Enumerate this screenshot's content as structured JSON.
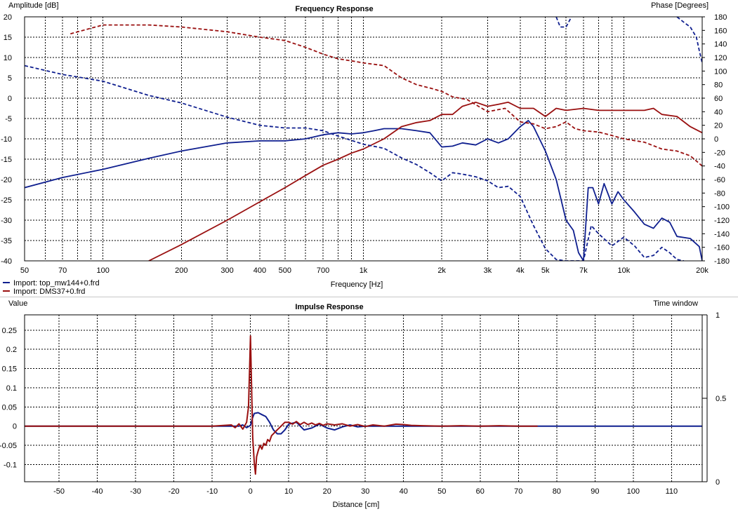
{
  "colors": {
    "blue": "#0f1f8f",
    "red": "#9a1010",
    "grid": "#000000",
    "background": "#ffffff"
  },
  "chart_data": [
    {
      "type": "line",
      "title": "Frequency Response",
      "ylabel": "Amplitude [dB]",
      "y2label": "Phase [Degrees]",
      "xlabel": "Frequency [Hz]",
      "xscale": "log",
      "xlim": [
        50,
        20000
      ],
      "ylim": [
        -40,
        20
      ],
      "y2lim": [
        -180,
        180
      ],
      "x_ticks": [
        50,
        70,
        100,
        200,
        300,
        400,
        500,
        700,
        1000,
        2000,
        3000,
        4000,
        5000,
        7000,
        10000,
        20000
      ],
      "x_tick_labels": [
        "50",
        "70",
        "100",
        "200",
        "300",
        "400",
        "500",
        "700",
        "1k",
        "2k",
        "3k",
        "4k",
        "5k",
        "7k",
        "10k",
        "20k"
      ],
      "y_ticks": [
        20,
        15,
        10,
        5,
        0,
        -5,
        -10,
        -15,
        -20,
        -25,
        -30,
        -35,
        -40
      ],
      "y2_ticks": [
        180,
        160,
        140,
        120,
        100,
        80,
        60,
        40,
        20,
        0,
        -20,
        -40,
        -60,
        -80,
        -100,
        -120,
        -140,
        -160,
        -180
      ],
      "grid": true,
      "legend_position": "bottom-left",
      "legend": [
        "Import: top_mw144+0.frd",
        "Import: DMS37+0.frd"
      ],
      "series": [
        {
          "name": "Import: top_mw144+0.frd",
          "quantity": "amplitude",
          "color": "#0f1f8f",
          "dash": false,
          "x": [
            50,
            70,
            100,
            150,
            200,
            300,
            400,
            500,
            600,
            700,
            800,
            900,
            1000,
            1100,
            1200,
            1400,
            1600,
            1800,
            2000,
            2200,
            2400,
            2700,
            3000,
            3300,
            3600,
            4000,
            4300,
            4500,
            5000,
            5500,
            6000,
            6400,
            6700,
            7000,
            7300,
            7600,
            8000,
            8400,
            9000,
            9500,
            10000,
            11000,
            12000,
            13000,
            14000,
            15000,
            16000,
            18000,
            19500,
            20000
          ],
          "y": [
            -22,
            -19.5,
            -17.5,
            -14.8,
            -13,
            -11,
            -10.5,
            -10.5,
            -10,
            -9,
            -8.5,
            -8.8,
            -8.5,
            -8,
            -7.5,
            -7.5,
            -8,
            -8.5,
            -12,
            -11.8,
            -11,
            -11.5,
            -10,
            -11,
            -10,
            -7,
            -5.5,
            -7,
            -13,
            -20,
            -30,
            -32.5,
            -38,
            -40,
            -22,
            -22,
            -26,
            -21,
            -26,
            -23,
            -25,
            -28,
            -31,
            -32,
            -29.5,
            -30.5,
            -34,
            -34.5,
            -36.5,
            -40
          ]
        },
        {
          "name": "Import: DMS37+0.frd",
          "quantity": "amplitude",
          "color": "#9a1010",
          "dash": false,
          "x": [
            150,
            200,
            300,
            400,
            500,
            600,
            700,
            800,
            900,
            1000,
            1200,
            1400,
            1600,
            1800,
            2000,
            2200,
            2400,
            2700,
            3000,
            3300,
            3600,
            4000,
            4500,
            5000,
            5500,
            6000,
            7000,
            8000,
            9000,
            10000,
            12000,
            13000,
            14000,
            16000,
            18000,
            20000
          ],
          "y": [
            -40,
            -36,
            -30,
            -25.5,
            -22,
            -19,
            -16.5,
            -15,
            -13.5,
            -12.5,
            -10,
            -7,
            -6,
            -5.5,
            -4,
            -4,
            -2,
            -1,
            -2,
            -1.5,
            -1,
            -2.5,
            -2.5,
            -4.5,
            -2.5,
            -3,
            -2.5,
            -3,
            -3,
            -3,
            -3,
            -2.5,
            -4,
            -4.5,
            -7,
            -8.5
          ]
        },
        {
          "name": "Import: top_mw144+0.frd",
          "quantity": "phase",
          "axis": "right",
          "color": "#0f1f8f",
          "dash": true,
          "x": [
            50,
            70,
            100,
            150,
            200,
            300,
            400,
            500,
            600,
            700,
            800,
            1000,
            1200,
            1400,
            1600,
            1800,
            2000,
            2200,
            2400,
            2700,
            3000,
            3300,
            3600,
            4000,
            4500,
            5000,
            5500,
            6000,
            6500,
            7000,
            7500,
            8000,
            9000,
            10000,
            11000,
            12000,
            13000,
            14000,
            15000,
            16000,
            17000
          ],
          "y": [
            108,
            95,
            85,
            64,
            53,
            32,
            20,
            16,
            16,
            12,
            4,
            -8,
            -14,
            -28,
            -38,
            -50,
            -62,
            -50,
            -52,
            -56,
            -62,
            -72,
            -70,
            -85,
            -128,
            -162,
            -178,
            -180,
            -180,
            -180,
            -128,
            -140,
            -158,
            -145,
            -158,
            -175,
            -172,
            -160,
            -168,
            -178,
            -180
          ]
        },
        {
          "name": "Import: top_mw144+0.frd",
          "quantity": "phase",
          "axis": "right",
          "color": "#0f1f8f",
          "dash": true,
          "x": [
            5500,
            5700,
            6000,
            6300
          ],
          "y": [
            180,
            165,
            165,
            180
          ]
        },
        {
          "name": "Import: top_mw144+0.frd",
          "quantity": "phase",
          "axis": "right",
          "color": "#0f1f8f",
          "dash": true,
          "x": [
            16000,
            17000,
            18000,
            19000,
            19500,
            20000
          ],
          "y": [
            180,
            172,
            165,
            150,
            130,
            112
          ]
        },
        {
          "name": "Import: DMS37+0.frd",
          "quantity": "phase",
          "axis": "right",
          "color": "#9a1010",
          "dash": true,
          "x": [
            75,
            100,
            150,
            200,
            300,
            400,
            500,
            600,
            700,
            800,
            900,
            1000,
            1200,
            1400,
            1600,
            1800,
            2000,
            2200,
            2500,
            3000,
            3500,
            4000,
            4500,
            5000,
            5500,
            6000,
            6500,
            7000,
            8000,
            9000,
            10000,
            12000,
            14000,
            16000,
            18000,
            20000
          ],
          "y": [
            155,
            168,
            168,
            165,
            158,
            150,
            145,
            135,
            125,
            118,
            115,
            112,
            108,
            90,
            80,
            75,
            70,
            62,
            58,
            40,
            45,
            25,
            22,
            15,
            18,
            25,
            15,
            12,
            10,
            5,
            0,
            -5,
            -15,
            -18,
            -25,
            -40
          ]
        }
      ]
    },
    {
      "type": "line",
      "title": "Impulse Response",
      "ylabel": "Value",
      "y2label": "Time window",
      "xlabel": "Distance [cm]",
      "xlim": [
        -59,
        118
      ],
      "ylim": [
        -0.145,
        0.29
      ],
      "y2lim": [
        0,
        1
      ],
      "x_ticks": [
        -50,
        -40,
        -30,
        -20,
        -10,
        0,
        10,
        20,
        30,
        40,
        50,
        60,
        70,
        80,
        90,
        100,
        110
      ],
      "y_ticks": [
        0.25,
        0.2,
        0.15,
        0.1,
        0.05,
        0,
        -0.05,
        -0.1
      ],
      "y2_ticks": [
        1,
        0.5,
        0
      ],
      "grid": true,
      "series": [
        {
          "name": "Import: top_mw144+0.frd",
          "color": "#0f1f8f",
          "x": [
            -59,
            -3,
            -2,
            -1,
            0,
            0.5,
            1,
            2,
            3,
            4,
            5,
            6,
            7,
            8,
            9,
            10,
            12,
            14,
            16,
            18,
            20,
            22,
            24,
            26,
            28,
            30,
            35,
            40,
            50,
            60,
            70,
            80,
            118
          ],
          "y": [
            0,
            0,
            0.003,
            -0.004,
            0.002,
            0.02,
            0.033,
            0.035,
            0.03,
            0.025,
            0.01,
            -0.01,
            -0.02,
            -0.02,
            -0.01,
            0.005,
            0.01,
            -0.01,
            -0.005,
            0.005,
            -0.005,
            -0.01,
            -0.002,
            0.003,
            -0.002,
            0,
            0,
            0,
            0,
            0,
            0,
            0,
            0
          ]
        },
        {
          "name": "Import: DMS37+0.frd",
          "color": "#9a1010",
          "x": [
            -59,
            -10,
            -5,
            -4,
            -3,
            -2,
            -1,
            -0.5,
            -0.2,
            0,
            0.3,
            0.6,
            1,
            1.3,
            1.6,
            2,
            2.5,
            3,
            3.5,
            4,
            4.5,
            5,
            5.5,
            6,
            7,
            8,
            9,
            10,
            11,
            12,
            13,
            14,
            15,
            16,
            17,
            18,
            19,
            20,
            22,
            24,
            26,
            28,
            30,
            32,
            35,
            38,
            40,
            42,
            45,
            50,
            55,
            60,
            65,
            70,
            75
          ],
          "y": [
            0,
            0,
            0.003,
            -0.004,
            0.006,
            -0.008,
            0.01,
            0.05,
            0.16,
            0.235,
            0.1,
            -0.03,
            -0.095,
            -0.125,
            -0.08,
            -0.065,
            -0.05,
            -0.06,
            -0.045,
            -0.05,
            -0.035,
            -0.04,
            -0.025,
            -0.02,
            -0.01,
            0,
            0.01,
            0.01,
            0.005,
            0.012,
            0.004,
            0.01,
            0.004,
            0.008,
            0.003,
            0.007,
            0.002,
            0.006,
            0.003,
            0.006,
            0,
            0.004,
            -0.001,
            0.003,
            0,
            0.005,
            0.004,
            0.002,
            0.001,
            0,
            0.001,
            0,
            0.001,
            0,
            0
          ]
        }
      ]
    }
  ]
}
